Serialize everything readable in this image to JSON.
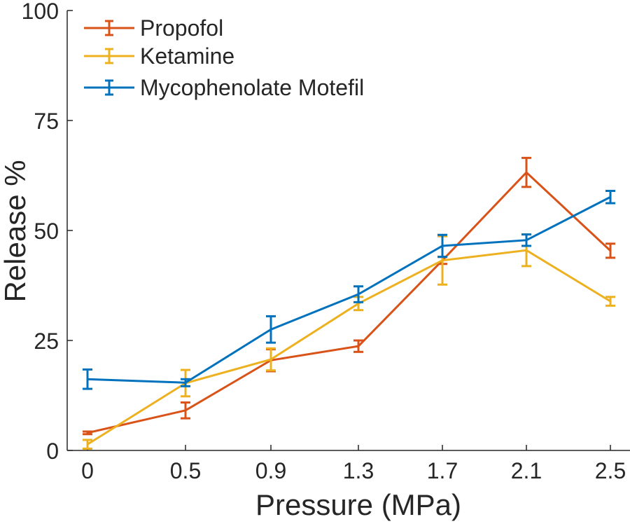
{
  "chart_data": {
    "type": "line",
    "title": "",
    "xlabel": "Pressure (MPa)",
    "ylabel": "Release %",
    "x": [
      0,
      0.5,
      0.9,
      1.3,
      1.7,
      2.1,
      2.5
    ],
    "x_tick_labels": [
      "0",
      "0.5",
      "0.9",
      "1.3",
      "1.7",
      "2.1",
      "2.5"
    ],
    "y_ticks": [
      0,
      25,
      50,
      75,
      100
    ],
    "y_tick_labels": [
      "0",
      "25",
      "50",
      "75",
      "100"
    ],
    "ylim": [
      0,
      100
    ],
    "xlim": [
      0,
      2.5
    ],
    "grid": false,
    "legend_position": "top-left",
    "series": [
      {
        "name": "Propofol",
        "color": "#D95319",
        "values": [
          4.0,
          9.1,
          20.5,
          23.7,
          43.2,
          63.2,
          45.4
        ],
        "errors": [
          0.3,
          1.8,
          2.5,
          1.3,
          0.8,
          3.3,
          1.6
        ]
      },
      {
        "name": "Ketamine",
        "color": "#EDB120",
        "values": [
          1.4,
          15.3,
          20.7,
          33.4,
          43.2,
          45.5,
          33.9
        ],
        "errors": [
          1.0,
          3.0,
          2.5,
          1.5,
          5.5,
          3.6,
          1.0
        ]
      },
      {
        "name": "Mycophenolate Motefil",
        "color": "#0072BD",
        "values": [
          16.2,
          15.4,
          27.5,
          35.5,
          46.5,
          47.8,
          57.6
        ],
        "errors": [
          2.2,
          0.8,
          3.0,
          1.8,
          2.5,
          1.3,
          1.4
        ]
      }
    ]
  }
}
